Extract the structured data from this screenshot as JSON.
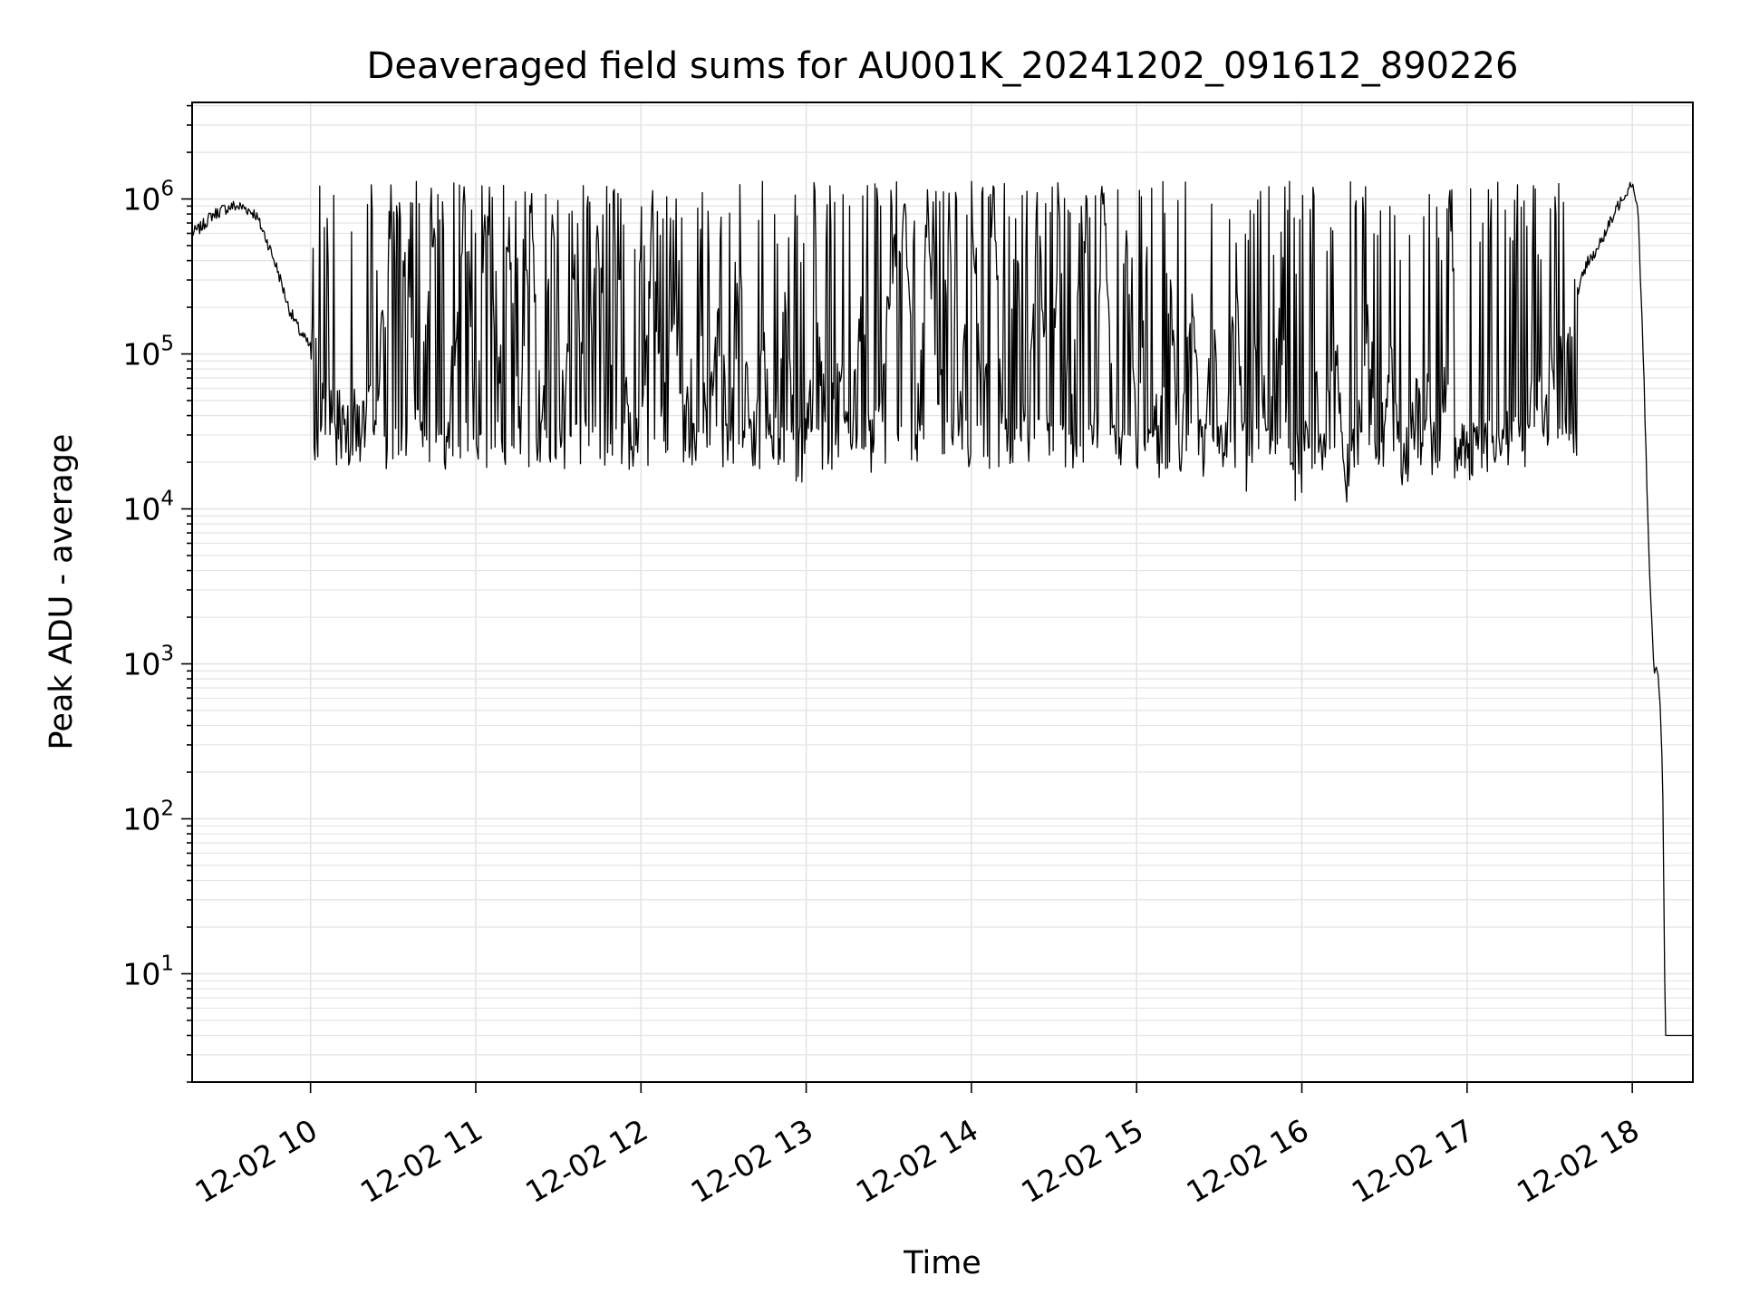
{
  "chart_data": {
    "type": "line",
    "title": "Deaveraged field sums for AU001K_20241202_091612_890226",
    "xlabel": "Time",
    "ylabel": "Peak ADU - average",
    "x_scale": "time",
    "y_scale": "log",
    "xlim": [
      "2024-12-02 09:17",
      "2024-12-02 18:22"
    ],
    "ylim": [
      2,
      4200000
    ],
    "grid": true,
    "legend": "none",
    "line_color": "#000000",
    "x_ticks": [
      {
        "value": "2024-12-02 10:00",
        "label": "12-02 10"
      },
      {
        "value": "2024-12-02 11:00",
        "label": "12-02 11"
      },
      {
        "value": "2024-12-02 12:00",
        "label": "12-02 12"
      },
      {
        "value": "2024-12-02 13:00",
        "label": "12-02 13"
      },
      {
        "value": "2024-12-02 14:00",
        "label": "12-02 14"
      },
      {
        "value": "2024-12-02 15:00",
        "label": "12-02 15"
      },
      {
        "value": "2024-12-02 16:00",
        "label": "12-02 16"
      },
      {
        "value": "2024-12-02 17:00",
        "label": "12-02 17"
      },
      {
        "value": "2024-12-02 18:00",
        "label": "12-02 18"
      }
    ],
    "y_ticks": [
      {
        "value": 10,
        "base": "10",
        "exp": "1"
      },
      {
        "value": 100,
        "base": "10",
        "exp": "2"
      },
      {
        "value": 1000,
        "base": "10",
        "exp": "3"
      },
      {
        "value": 10000,
        "base": "10",
        "exp": "4"
      },
      {
        "value": 100000,
        "base": "10",
        "exp": "5"
      },
      {
        "value": 1000000,
        "base": "10",
        "exp": "6"
      }
    ],
    "series": [
      {
        "x": [
          "2024-12-02 09:17",
          "2024-12-02 09:20",
          "2024-12-02 09:24",
          "2024-12-02 09:28",
          "2024-12-02 09:32",
          "2024-12-02 09:36",
          "2024-12-02 09:40",
          "2024-12-02 09:44",
          "2024-12-02 09:48",
          "2024-12-02 09:52",
          "2024-12-02 09:56",
          "2024-12-02 10:00",
          "2024-12-02 10:04",
          "2024-12-02 10:08",
          "2024-12-02 10:12",
          "2024-12-02 10:16",
          "2024-12-02 10:20",
          "2024-12-02 10:24",
          "2024-12-02 10:28",
          "2024-12-02 10:32",
          "2024-12-02 10:36",
          "2024-12-02 10:40",
          "2024-12-02 10:44",
          "2024-12-02 10:48",
          "2024-12-02 10:52",
          "2024-12-02 10:56",
          "2024-12-02 11:00",
          "2024-12-02 11:04",
          "2024-12-02 11:08",
          "2024-12-02 11:12",
          "2024-12-02 11:16",
          "2024-12-02 11:20",
          "2024-12-02 11:24",
          "2024-12-02 11:28",
          "2024-12-02 11:32",
          "2024-12-02 11:36",
          "2024-12-02 11:40",
          "2024-12-02 11:44",
          "2024-12-02 11:48",
          "2024-12-02 11:52",
          "2024-12-02 11:56",
          "2024-12-02 12:00",
          "2024-12-02 12:04",
          "2024-12-02 12:08",
          "2024-12-02 12:12",
          "2024-12-02 12:16",
          "2024-12-02 12:20",
          "2024-12-02 12:24",
          "2024-12-02 12:28",
          "2024-12-02 12:32",
          "2024-12-02 12:36",
          "2024-12-02 12:40",
          "2024-12-02 12:44",
          "2024-12-02 12:48",
          "2024-12-02 12:52",
          "2024-12-02 12:56",
          "2024-12-02 13:00",
          "2024-12-02 13:04",
          "2024-12-02 13:08",
          "2024-12-02 13:12",
          "2024-12-02 13:16",
          "2024-12-02 13:20",
          "2024-12-02 13:24",
          "2024-12-02 13:28",
          "2024-12-02 13:32",
          "2024-12-02 13:36",
          "2024-12-02 13:40",
          "2024-12-02 13:44",
          "2024-12-02 13:48",
          "2024-12-02 13:52",
          "2024-12-02 13:56",
          "2024-12-02 14:00",
          "2024-12-02 14:04",
          "2024-12-02 14:08",
          "2024-12-02 14:12",
          "2024-12-02 14:16",
          "2024-12-02 14:20",
          "2024-12-02 14:24",
          "2024-12-02 14:28",
          "2024-12-02 14:32",
          "2024-12-02 14:36",
          "2024-12-02 14:40",
          "2024-12-02 14:44",
          "2024-12-02 14:48",
          "2024-12-02 14:52",
          "2024-12-02 14:56",
          "2024-12-02 15:00",
          "2024-12-02 15:04",
          "2024-12-02 15:08",
          "2024-12-02 15:12",
          "2024-12-02 15:16",
          "2024-12-02 15:20",
          "2024-12-02 15:24",
          "2024-12-02 15:28",
          "2024-12-02 15:32",
          "2024-12-02 15:36",
          "2024-12-02 15:40",
          "2024-12-02 15:44",
          "2024-12-02 15:48",
          "2024-12-02 15:52",
          "2024-12-02 15:56",
          "2024-12-02 16:00",
          "2024-12-02 16:04",
          "2024-12-02 16:08",
          "2024-12-02 16:12",
          "2024-12-02 16:16",
          "2024-12-02 16:20",
          "2024-12-02 16:24",
          "2024-12-02 16:28",
          "2024-12-02 16:32",
          "2024-12-02 16:36",
          "2024-12-02 16:40",
          "2024-12-02 16:44",
          "2024-12-02 16:48",
          "2024-12-02 16:52",
          "2024-12-02 16:56",
          "2024-12-02 17:00",
          "2024-12-02 17:04",
          "2024-12-02 17:08",
          "2024-12-02 17:12",
          "2024-12-02 17:16",
          "2024-12-02 17:20",
          "2024-12-02 17:24",
          "2024-12-02 17:28",
          "2024-12-02 17:32",
          "2024-12-02 17:36",
          "2024-12-02 17:40",
          "2024-12-02 17:44",
          "2024-12-02 17:48",
          "2024-12-02 17:52",
          "2024-12-02 17:56",
          "2024-12-02 18:00",
          "2024-12-02 18:02",
          "2024-12-02 18:04",
          "2024-12-02 18:06",
          "2024-12-02 18:07",
          "2024-12-02 18:08",
          "2024-12-02 18:09",
          "2024-12-02 18:10",
          "2024-12-02 18:11",
          "2024-12-02 18:12",
          "2024-12-02 18:13",
          "2024-12-02 18:14",
          "2024-12-02 18:16",
          "2024-12-02 18:18",
          "2024-12-02 18:22"
        ],
        "values": [
          600000,
          650000,
          780000,
          850000,
          900000,
          880000,
          800000,
          550000,
          350000,
          200000,
          140000,
          110000,
          80000,
          50000,
          40000,
          38000,
          35000,
          60000,
          300000,
          900000,
          150000,
          40000,
          700000,
          1100000,
          50000,
          1000000,
          45000,
          1200000,
          60000,
          800000,
          35000,
          1000000,
          40000,
          700000,
          50000,
          400000,
          30000,
          900000,
          45000,
          300000,
          35000,
          25000,
          600000,
          30000,
          250000,
          28000,
          500000,
          22000,
          180000,
          25000,
          400000,
          20000,
          150000,
          22000,
          300000,
          20000,
          25000,
          180000,
          22000,
          120000,
          20000,
          250000,
          18000,
          100000,
          500000,
          900000,
          30000,
          1000000,
          35000,
          800000,
          40000,
          900000,
          30000,
          1000000,
          25000,
          850000,
          20000,
          900000,
          30000,
          750000,
          25000,
          1000000,
          30000,
          950000,
          22000,
          600000,
          25000,
          400000,
          20000,
          300000,
          18000,
          350000,
          20000,
          200000,
          18000,
          250000,
          17000,
          150000,
          20000,
          200000,
          16000,
          18000,
          150000,
          20000,
          120000,
          17000,
          25000,
          180000,
          20000,
          100000,
          16000,
          30000,
          120000,
          18000,
          60000,
          20000,
          22000,
          30000,
          25000,
          28000,
          30000,
          35000,
          45000,
          60000,
          90000,
          150000,
          250000,
          400000,
          500000,
          700000,
          1000000,
          1300000,
          900000,
          100000,
          5000,
          2000,
          800,
          1000,
          600,
          200,
          4,
          4,
          4,
          4,
          4,
          4
        ]
      }
    ]
  }
}
